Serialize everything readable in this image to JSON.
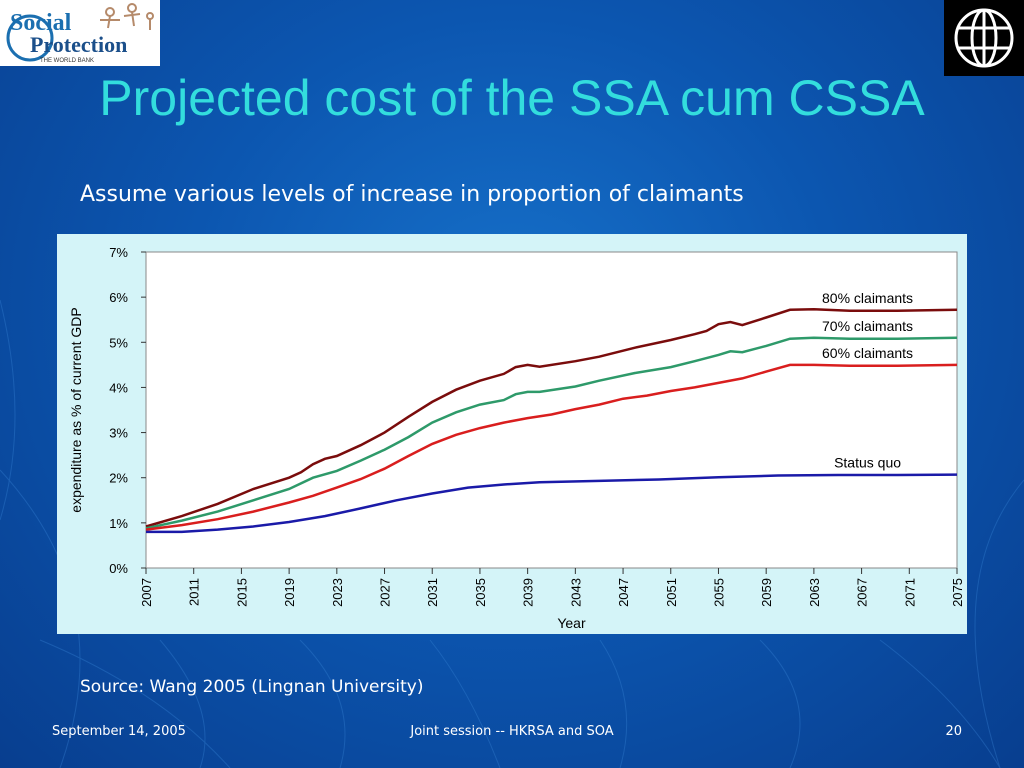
{
  "logos": {
    "left": {
      "line1": "Social",
      "line2": "Protection",
      "line3": "THE WORLD BANK"
    },
    "right": {
      "name": "world-bank-globe"
    }
  },
  "slide": {
    "title": "Projected cost of the SSA cum CSSA",
    "subtitle": "Assume various levels of increase in proportion of claimants",
    "source": "Source: Wang 2005 (Lingnan University)"
  },
  "footer": {
    "date": "September 14, 2005",
    "center": "Joint session -- HKRSA and SOA",
    "page": "20"
  },
  "colors": {
    "title": "#33dddd",
    "panel": "#d4f4f8",
    "s80": "#7a0c0c",
    "s70": "#2e9a6a",
    "s60": "#d91e1e",
    "status": "#1a1aa8"
  },
  "chart_data": {
    "type": "line",
    "title": "",
    "xlabel": "Year",
    "ylabel": "expenditure as % of current GDP",
    "ylim": [
      0,
      7
    ],
    "yticks": [
      "0%",
      "1%",
      "2%",
      "3%",
      "4%",
      "5%",
      "6%",
      "7%"
    ],
    "xlim": [
      2007,
      2075
    ],
    "xticks": [
      "2007",
      "2011",
      "2015",
      "2019",
      "2023",
      "2027",
      "2031",
      "2035",
      "2039",
      "2043",
      "2047",
      "2051",
      "2055",
      "2059",
      "2063",
      "2067",
      "2071",
      "2075"
    ],
    "series": [
      {
        "name": "80% claimants",
        "color_key": "s80",
        "points": [
          [
            2007,
            0.92
          ],
          [
            2010,
            1.15
          ],
          [
            2013,
            1.42
          ],
          [
            2016,
            1.75
          ],
          [
            2019,
            2.0
          ],
          [
            2020,
            2.12
          ],
          [
            2021,
            2.3
          ],
          [
            2022,
            2.42
          ],
          [
            2023,
            2.48
          ],
          [
            2025,
            2.72
          ],
          [
            2027,
            3.0
          ],
          [
            2029,
            3.35
          ],
          [
            2031,
            3.68
          ],
          [
            2033,
            3.95
          ],
          [
            2035,
            4.15
          ],
          [
            2037,
            4.3
          ],
          [
            2038,
            4.45
          ],
          [
            2039,
            4.5
          ],
          [
            2040,
            4.46
          ],
          [
            2043,
            4.58
          ],
          [
            2045,
            4.68
          ],
          [
            2048,
            4.88
          ],
          [
            2051,
            5.05
          ],
          [
            2053,
            5.18
          ],
          [
            2054,
            5.25
          ],
          [
            2055,
            5.4
          ],
          [
            2056,
            5.45
          ],
          [
            2057,
            5.38
          ],
          [
            2059,
            5.55
          ],
          [
            2061,
            5.72
          ],
          [
            2063,
            5.73
          ],
          [
            2066,
            5.7
          ],
          [
            2070,
            5.7
          ],
          [
            2075,
            5.72
          ]
        ]
      },
      {
        "name": "70% claimants",
        "color_key": "s70",
        "points": [
          [
            2007,
            0.88
          ],
          [
            2010,
            1.05
          ],
          [
            2013,
            1.25
          ],
          [
            2016,
            1.5
          ],
          [
            2019,
            1.75
          ],
          [
            2021,
            2.0
          ],
          [
            2023,
            2.15
          ],
          [
            2025,
            2.38
          ],
          [
            2027,
            2.62
          ],
          [
            2029,
            2.9
          ],
          [
            2031,
            3.22
          ],
          [
            2033,
            3.45
          ],
          [
            2035,
            3.62
          ],
          [
            2037,
            3.72
          ],
          [
            2038,
            3.85
          ],
          [
            2039,
            3.9
          ],
          [
            2040,
            3.9
          ],
          [
            2043,
            4.02
          ],
          [
            2045,
            4.15
          ],
          [
            2048,
            4.32
          ],
          [
            2051,
            4.45
          ],
          [
            2053,
            4.58
          ],
          [
            2055,
            4.72
          ],
          [
            2056,
            4.8
          ],
          [
            2057,
            4.78
          ],
          [
            2059,
            4.92
          ],
          [
            2061,
            5.08
          ],
          [
            2063,
            5.1
          ],
          [
            2066,
            5.08
          ],
          [
            2070,
            5.08
          ],
          [
            2075,
            5.1
          ]
        ]
      },
      {
        "name": "60% claimants",
        "color_key": "s60",
        "points": [
          [
            2007,
            0.85
          ],
          [
            2010,
            0.95
          ],
          [
            2013,
            1.08
          ],
          [
            2016,
            1.25
          ],
          [
            2019,
            1.45
          ],
          [
            2021,
            1.6
          ],
          [
            2023,
            1.78
          ],
          [
            2025,
            1.97
          ],
          [
            2027,
            2.2
          ],
          [
            2029,
            2.48
          ],
          [
            2031,
            2.75
          ],
          [
            2033,
            2.95
          ],
          [
            2035,
            3.1
          ],
          [
            2037,
            3.22
          ],
          [
            2039,
            3.32
          ],
          [
            2041,
            3.4
          ],
          [
            2043,
            3.52
          ],
          [
            2045,
            3.62
          ],
          [
            2047,
            3.75
          ],
          [
            2049,
            3.82
          ],
          [
            2051,
            3.92
          ],
          [
            2053,
            4.0
          ],
          [
            2055,
            4.1
          ],
          [
            2057,
            4.2
          ],
          [
            2059,
            4.35
          ],
          [
            2061,
            4.5
          ],
          [
            2063,
            4.5
          ],
          [
            2066,
            4.48
          ],
          [
            2070,
            4.48
          ],
          [
            2075,
            4.5
          ]
        ]
      },
      {
        "name": "Status quo",
        "color_key": "status",
        "points": [
          [
            2007,
            0.8
          ],
          [
            2010,
            0.8
          ],
          [
            2013,
            0.85
          ],
          [
            2016,
            0.92
          ],
          [
            2019,
            1.02
          ],
          [
            2022,
            1.15
          ],
          [
            2025,
            1.32
          ],
          [
            2028,
            1.5
          ],
          [
            2031,
            1.65
          ],
          [
            2034,
            1.78
          ],
          [
            2037,
            1.85
          ],
          [
            2040,
            1.9
          ],
          [
            2045,
            1.93
          ],
          [
            2050,
            1.96
          ],
          [
            2055,
            2.01
          ],
          [
            2060,
            2.05
          ],
          [
            2065,
            2.06
          ],
          [
            2070,
            2.06
          ],
          [
            2075,
            2.07
          ]
        ]
      }
    ]
  }
}
